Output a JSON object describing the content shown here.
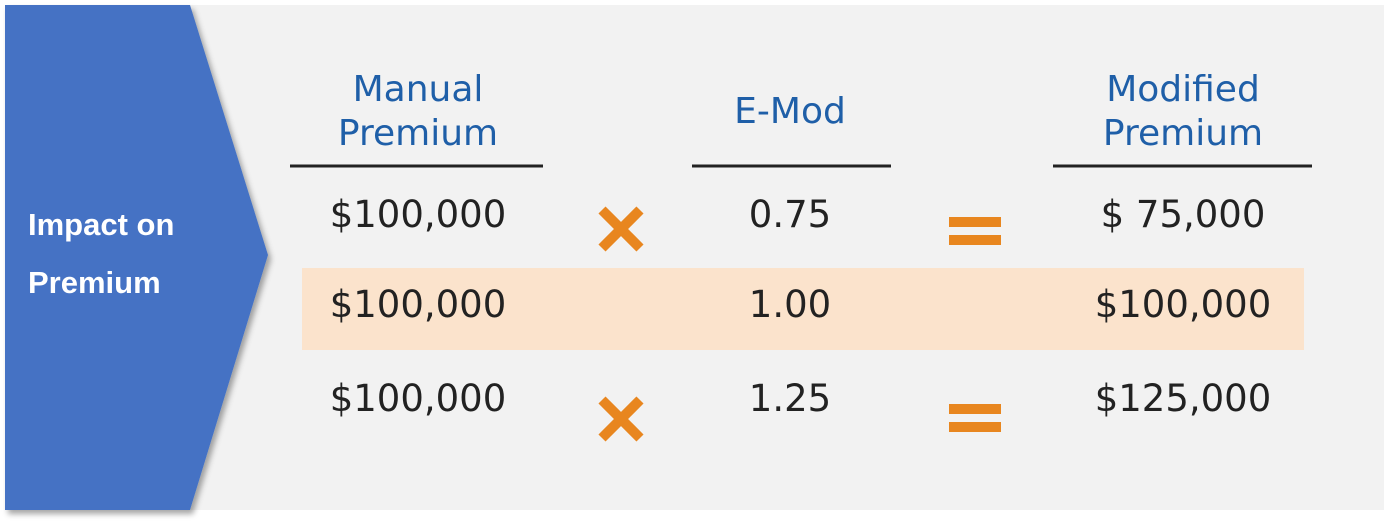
{
  "label": "Impact on Premium",
  "table": {
    "headers": [
      "Manual Premium",
      "E-Mod",
      "Modified Premium"
    ],
    "rows": [
      [
        "$100,000",
        "0.75",
        "$ 75,000"
      ],
      [
        "$100,000",
        "1.00",
        "$100,000"
      ],
      [
        "$100,000",
        "1.25",
        "$125,000"
      ]
    ]
  }
}
